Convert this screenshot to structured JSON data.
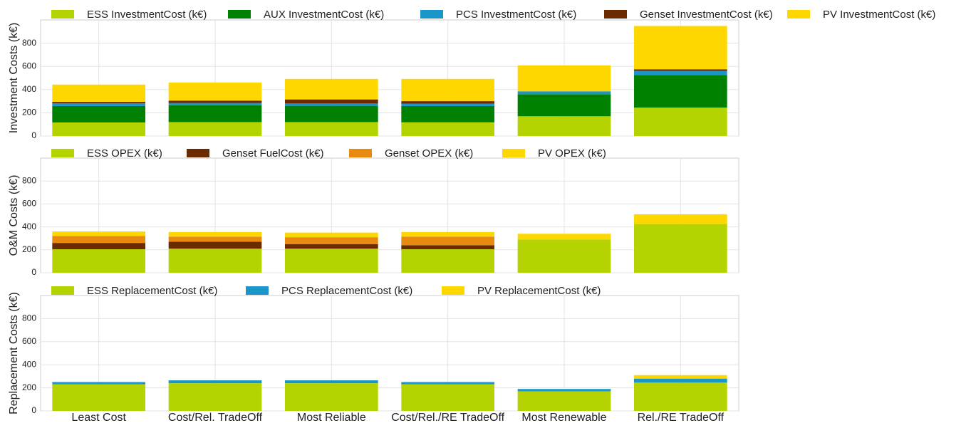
{
  "chart_data": [
    {
      "type": "stacked_bar",
      "y_label": "Investment Costs (k€)",
      "ylim": [
        0,
        1000
      ],
      "yticks": [
        0,
        200,
        400,
        600,
        800
      ],
      "grid": true,
      "series": [
        {
          "name": "ESS InvestmentCost (k€)",
          "color": "#b5d300",
          "values": [
            117,
            120,
            120,
            118,
            170,
            245
          ]
        },
        {
          "name": "AUX InvestmentCost (k€)",
          "color": "#008000",
          "values": [
            141,
            145,
            140,
            140,
            190,
            280
          ]
        },
        {
          "name": "PCS InvestmentCost (k€)",
          "color": "#1a96c8",
          "values": [
            25,
            20,
            20,
            20,
            25,
            35
          ]
        },
        {
          "name": "Genset InvestmentCost (k€)",
          "color": "#6b2a00",
          "values": [
            12,
            20,
            35,
            22,
            0,
            15
          ]
        },
        {
          "name": "PV InvestmentCost (k€)",
          "color": "#ffd700",
          "values": [
            148,
            156,
            177,
            192,
            224,
            373
          ]
        }
      ]
    },
    {
      "type": "stacked_bar",
      "y_label": "O&M Costs  (k€)",
      "ylim": [
        0,
        1000
      ],
      "yticks": [
        0,
        200,
        400,
        600,
        800
      ],
      "grid": true,
      "series": [
        {
          "name": "ESS OPEX (k€)",
          "color": "#b5d300",
          "values": [
            205,
            210,
            210,
            205,
            290,
            425
          ]
        },
        {
          "name": "Genset FuelCost (k€)",
          "color": "#6b2a00",
          "values": [
            55,
            60,
            40,
            35,
            0,
            0
          ]
        },
        {
          "name": "Genset OPEX (k€)",
          "color": "#e88a10",
          "values": [
            60,
            45,
            60,
            75,
            0,
            0
          ]
        },
        {
          "name": "PV OPEX (k€)",
          "color": "#ffd700",
          "values": [
            40,
            40,
            40,
            40,
            50,
            85
          ]
        }
      ]
    },
    {
      "type": "stacked_bar",
      "y_label": "Replacement Costs (k€)",
      "ylim": [
        0,
        1000
      ],
      "yticks": [
        0,
        200,
        400,
        600,
        800
      ],
      "grid": true,
      "categories": [
        "Least Cost",
        "Cost/Rel. TradeOff",
        "Most Reliable",
        "Cost/Rel./RE TradeOff",
        "Most Renewable",
        "Rel./RE TradeOff"
      ],
      "series": [
        {
          "name": "ESS ReplacementCost (k€)",
          "color": "#b5d300",
          "values": [
            230,
            240,
            240,
            230,
            170,
            245
          ]
        },
        {
          "name": "PCS ReplacementCost (k€)",
          "color": "#1a96c8",
          "values": [
            20,
            25,
            25,
            20,
            20,
            35
          ]
        },
        {
          "name": "PV ReplacementCost (k€)",
          "color": "#ffd700",
          "values": [
            0,
            0,
            0,
            0,
            0,
            30
          ]
        }
      ]
    }
  ]
}
